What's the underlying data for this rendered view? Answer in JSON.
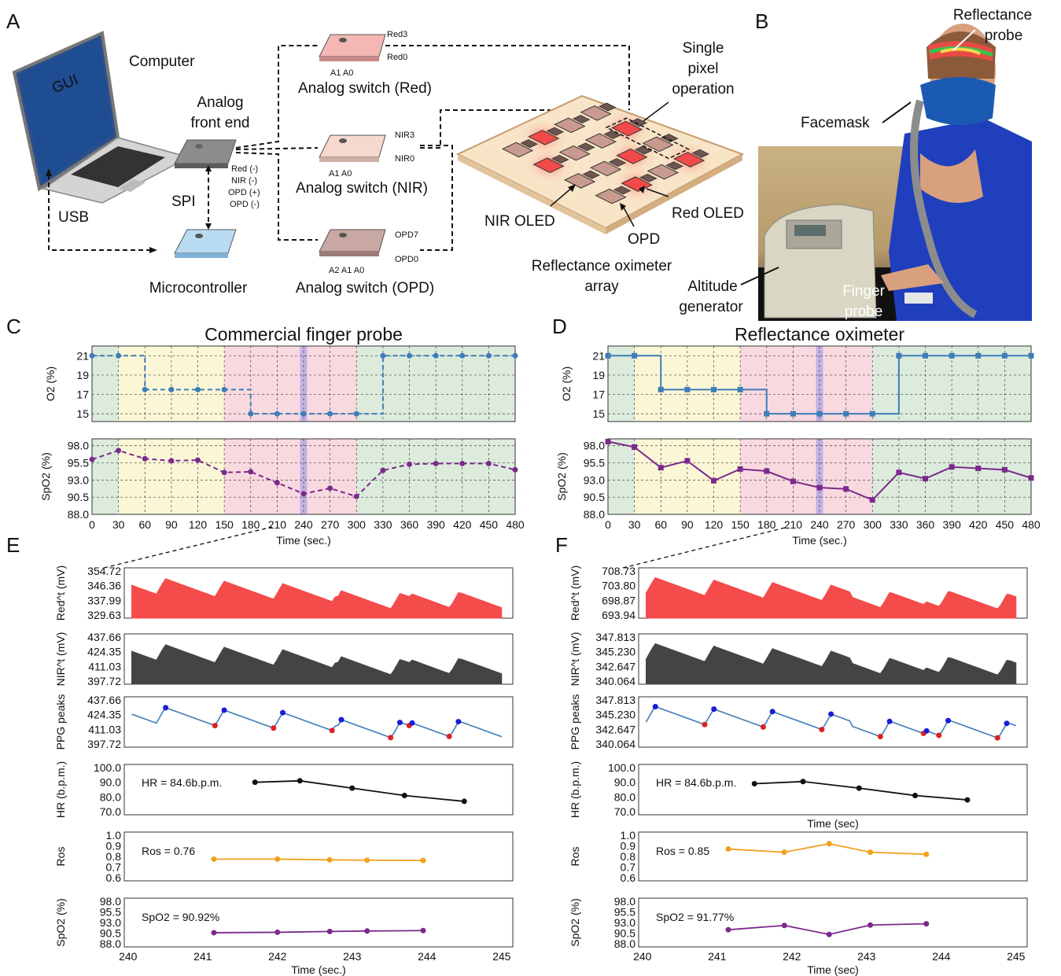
{
  "panels": {
    "A": "A",
    "B": "B",
    "C": "C",
    "D": "D",
    "E": "E",
    "F": "F"
  },
  "diagram": {
    "computer": "Computer",
    "gui": "GUI",
    "afe": [
      "Analog",
      "front end"
    ],
    "spi": "SPI",
    "usb": "USB",
    "micro": "Microcontroller",
    "afe_pins": [
      "Red (-)",
      "NIR (-)",
      "OPD (+)",
      "OPD (-)"
    ],
    "sw_red": "Analog switch (Red)",
    "sw_nir": "Analog switch (NIR)",
    "sw_opd": "Analog switch (OPD)",
    "red_pins": [
      "Red3",
      "Red0",
      "A1 A0"
    ],
    "nir_pins": [
      "NIR3",
      "NIR0",
      "A1 A0"
    ],
    "opd_pins": [
      "OPD7",
      "OPD0",
      "A2 A1 A0"
    ],
    "single_pixel": [
      "Single",
      "pixel",
      "operation"
    ],
    "nir_oled": "NIR OLED",
    "red_oled": "Red OLED",
    "opd": "OPD",
    "array": [
      "Reflectance oximeter",
      "array"
    ]
  },
  "photo": {
    "reflectance_probe": [
      "Reflectance",
      "probe"
    ],
    "facemask": "Facemask",
    "altitude": [
      "Altitude",
      "generator"
    ],
    "finger": [
      "Finger",
      "probe"
    ]
  },
  "colors": {
    "yellow": "#fbf7d6",
    "pink": "#f8d9e0",
    "green": "#dcebdc",
    "red": "#f44b4b",
    "dark": "#444444",
    "blue": "#3d7db8",
    "purple": "#7b2a8b",
    "orange": "#f2a01e",
    "black": "#111111"
  },
  "chart_data": [
    {
      "type": "line",
      "panel": "C",
      "title": "Commercial finger probe",
      "ylabel": "O2 (%)",
      "xlabel": "Time (sec.)",
      "x": [
        0,
        30,
        60,
        90,
        120,
        150,
        180,
        210,
        240,
        270,
        300,
        330,
        360,
        390,
        420,
        450,
        480
      ],
      "y": [
        21,
        21,
        17.5,
        17.5,
        17.5,
        17.5,
        15,
        15,
        15,
        15,
        15,
        21,
        21,
        21,
        21,
        21,
        21
      ],
      "yticks": [
        15,
        17,
        19,
        21
      ],
      "ylim": [
        14.2,
        22
      ],
      "style": "dashed step"
    },
    {
      "type": "line",
      "panel": "C",
      "ylabel": "SpO2 (%)",
      "xlabel": "Time (sec.)",
      "x": [
        0,
        30,
        60,
        90,
        120,
        150,
        180,
        210,
        240,
        270,
        300,
        330,
        360,
        390,
        420,
        450,
        480
      ],
      "y": [
        96.0,
        97.3,
        96.1,
        95.8,
        95.9,
        94.1,
        94.2,
        92.6,
        91.0,
        91.8,
        90.6,
        94.4,
        95.3,
        95.4,
        95.4,
        95.4,
        94.5
      ],
      "yticks": [
        88.0,
        90.5,
        93.0,
        95.5,
        98.0
      ],
      "ylim": [
        88,
        99
      ],
      "xticks": [
        0,
        30,
        60,
        90,
        120,
        150,
        180,
        210,
        240,
        270,
        300,
        330,
        360,
        390,
        420,
        450,
        480
      ]
    },
    {
      "type": "line",
      "panel": "D",
      "title": "Reflectance oximeter",
      "ylabel": "O2 (%)",
      "xlabel": "Time (sec.)",
      "x": [
        0,
        30,
        60,
        90,
        120,
        150,
        180,
        210,
        240,
        270,
        300,
        330,
        360,
        390,
        420,
        450,
        480
      ],
      "y": [
        21,
        21,
        17.5,
        17.5,
        17.5,
        17.5,
        15,
        15,
        15,
        15,
        15,
        21,
        21,
        21,
        21,
        21,
        21
      ],
      "yticks": [
        15,
        17,
        19,
        21
      ],
      "ylim": [
        14.2,
        22
      ],
      "style": "solid step"
    },
    {
      "type": "line",
      "panel": "D",
      "ylabel": "SpO2 (%)",
      "xlabel": "Time (sec.)",
      "x": [
        0,
        30,
        60,
        90,
        120,
        150,
        180,
        210,
        240,
        270,
        300,
        330,
        360,
        390,
        420,
        450,
        480
      ],
      "y": [
        98.6,
        97.8,
        94.8,
        95.8,
        92.9,
        94.6,
        94.3,
        92.8,
        91.9,
        91.7,
        90.1,
        94.1,
        93.2,
        94.9,
        94.7,
        94.5,
        93.3
      ],
      "yticks": [
        88.0,
        90.5,
        93.0,
        95.5,
        98.0
      ],
      "ylim": [
        88,
        99
      ],
      "xticks": [
        0,
        30,
        60,
        90,
        120,
        150,
        180,
        210,
        240,
        270,
        300,
        330,
        360,
        390,
        420,
        450,
        480
      ]
    },
    {
      "type": "area",
      "panel": "E",
      "ylabel": "Red^t (mV)",
      "yticks": [
        "354.72",
        "346.36",
        "337.99",
        "329.63"
      ]
    },
    {
      "type": "area",
      "panel": "E",
      "ylabel": "NIR^t (mV)",
      "yticks": [
        "437.66",
        "424.35",
        "411.03",
        "397.72"
      ]
    },
    {
      "type": "line",
      "panel": "E",
      "ylabel": "PPG peaks",
      "yticks": [
        "437.66",
        "424.35",
        "411.03",
        "397.72"
      ]
    },
    {
      "type": "line",
      "panel": "E",
      "ylabel": "HR (b.p.m.)",
      "annotation": "HR = 84.6b.p.m.",
      "yticks": [
        "100.0",
        "90.0",
        "80.0",
        "70.0"
      ],
      "x": [
        241.7,
        242.3,
        243.0,
        243.7,
        244.5
      ],
      "y": [
        90,
        91,
        86,
        81,
        77
      ]
    },
    {
      "type": "line",
      "panel": "E",
      "ylabel": "Ros",
      "annotation": "Ros = 0.76",
      "yticks": [
        "1.0",
        "0.9",
        "0.8",
        "0.7",
        "0.6"
      ],
      "x": [
        241.15,
        242.0,
        242.7,
        243.2,
        243.95
      ],
      "y": [
        0.775,
        0.775,
        0.768,
        0.765,
        0.762
      ]
    },
    {
      "type": "line",
      "panel": "E",
      "ylabel": "SpO2 (%)",
      "xlabel": "Time (sec.)",
      "annotation": "SpO2 = 90.92%",
      "yticks": [
        "98.0",
        "95.5",
        "93.0",
        "90.5",
        "88.0"
      ],
      "x": [
        241.15,
        242.0,
        242.7,
        243.2,
        243.95
      ],
      "y": [
        90.6,
        90.7,
        90.9,
        91.0,
        91.1
      ],
      "xticks": [
        240,
        241,
        242,
        243,
        244,
        245
      ]
    },
    {
      "type": "area",
      "panel": "F",
      "ylabel": "Red^t (mV)",
      "yticks": [
        "708.73",
        "703.80",
        "698.87",
        "693.94"
      ]
    },
    {
      "type": "area",
      "panel": "F",
      "ylabel": "NIR^t (mV)",
      "yticks": [
        "347.813",
        "345.230",
        "342.647",
        "340.064"
      ]
    },
    {
      "type": "line",
      "panel": "F",
      "ylabel": "PPG peaks",
      "yticks": [
        "347.813",
        "345.230",
        "342.647",
        "340.064"
      ]
    },
    {
      "type": "line",
      "panel": "F",
      "ylabel": "HR (b.p.m.)",
      "xlabel": "Time (sec)",
      "annotation": "HR = 84.6b.p.m.",
      "yticks": [
        "100.0",
        "90.0",
        "80.0",
        "70.0"
      ],
      "x": [
        241.5,
        242.15,
        242.9,
        243.65,
        244.35
      ],
      "y": [
        89,
        90.5,
        86,
        81,
        78
      ]
    },
    {
      "type": "line",
      "panel": "F",
      "ylabel": "Ros",
      "annotation": "Ros = 0.85",
      "yticks": [
        "1.0",
        "0.9",
        "0.8",
        "0.7",
        "0.6"
      ],
      "x": [
        241.15,
        241.9,
        242.5,
        243.05,
        243.8
      ],
      "y": [
        0.87,
        0.84,
        0.92,
        0.84,
        0.82
      ]
    },
    {
      "type": "line",
      "panel": "F",
      "ylabel": "SpO2 (%)",
      "xlabel": "Time (sec)",
      "annotation": "SpO2 = 91.77%",
      "yticks": [
        "98.0",
        "95.5",
        "93.0",
        "90.5",
        "88.0"
      ],
      "x": [
        241.15,
        241.9,
        242.5,
        243.05,
        243.8
      ],
      "y": [
        91.3,
        92.3,
        90.2,
        92.4,
        92.7
      ],
      "xticks": [
        240,
        241,
        242,
        243,
        244,
        245
      ]
    }
  ]
}
